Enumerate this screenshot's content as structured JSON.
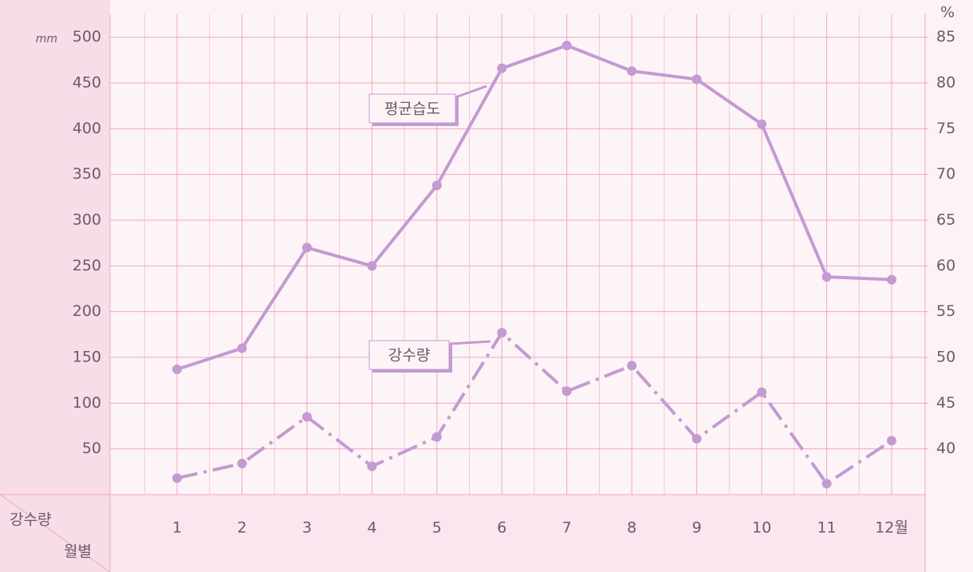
{
  "chart_data": {
    "type": "line",
    "categories": [
      "1",
      "2",
      "3",
      "4",
      "5",
      "6",
      "7",
      "8",
      "9",
      "10",
      "11",
      "12월"
    ],
    "series": [
      {
        "name": "평균습도",
        "color": "#c49ad2",
        "axis": "y2",
        "dash": "solid",
        "values": [
          48.7,
          51.0,
          62.0,
          60.0,
          68.8,
          81.6,
          84.1,
          81.3,
          80.4,
          75.5,
          58.8,
          58.5
        ]
      },
      {
        "name": "강수량",
        "color": "#c49ad2",
        "dash": "dashdot",
        "values": [
          18,
          34,
          85,
          31,
          63,
          177,
          113,
          141,
          61,
          112,
          12,
          59
        ]
      }
    ],
    "y_label": "mm",
    "y2_label": "%",
    "ylim": [
      0,
      525
    ],
    "yticks": [
      50,
      100,
      150,
      200,
      250,
      300,
      350,
      400,
      450,
      500
    ],
    "y2lim": [
      35,
      87.5
    ],
    "y2ticks": [
      40,
      45,
      50,
      55,
      60,
      65,
      70,
      75,
      80,
      85
    ],
    "table_corner": [
      "강수량",
      "월별"
    ],
    "grid": true
  }
}
